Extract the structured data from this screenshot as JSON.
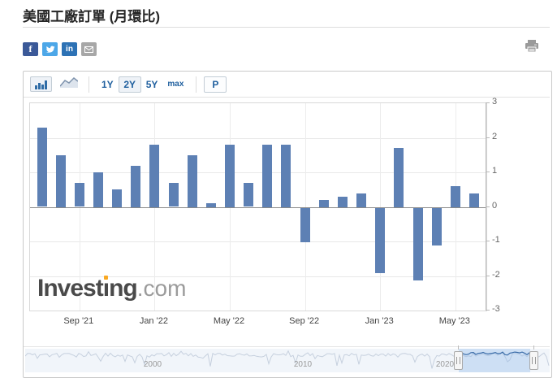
{
  "page": {
    "title": "美國工廠訂單 (月環比)"
  },
  "social": {
    "facebook_label": "f",
    "linkedin_label": "in"
  },
  "toolbar": {
    "range_1y": "1Y",
    "range_2y": "2Y",
    "range_5y": "5Y",
    "range_max": "max",
    "p_label": "P",
    "selected_range": "2Y",
    "accent_color": "#20609f"
  },
  "watermark": {
    "part1": "Invest",
    "part2": "ng",
    "dotcom": ".com"
  },
  "chart_data": {
    "type": "bar",
    "title": "美國工廠訂單 (月環比)",
    "categories": [
      "Jul '21",
      "Aug '21",
      "Sep '21",
      "Oct '21",
      "Nov '21",
      "Dec '21",
      "Jan '22",
      "Feb '22",
      "Mar '22",
      "Apr '22",
      "May '22",
      "Jun '22",
      "Jul '22",
      "Aug '22",
      "Sep '22",
      "Oct '22",
      "Nov '22",
      "Dec '22",
      "Jan '23",
      "Feb '23",
      "Mar '23",
      "Apr '23",
      "May '23",
      "Jun '23"
    ],
    "values": [
      2.3,
      1.5,
      0.7,
      1.0,
      0.5,
      1.2,
      1.8,
      0.7,
      1.5,
      0.1,
      1.8,
      0.7,
      1.8,
      1.8,
      -1.0,
      0.2,
      0.3,
      0.4,
      -1.9,
      1.7,
      -2.1,
      -1.1,
      0.6,
      0.4
    ],
    "xlabel": "",
    "ylabel": "",
    "ylim": [
      -3,
      3
    ],
    "yticks": [
      3,
      2,
      1,
      0,
      -1,
      -2,
      -3
    ],
    "xtick_labels": [
      "Sep '21",
      "Jan '22",
      "May '22",
      "Sep '22",
      "Jan '23",
      "May '23"
    ],
    "xtick_indices": [
      2,
      6,
      10,
      14,
      18,
      22
    ],
    "grid": true,
    "axis_side": "right",
    "bar_color": "#5d80b4",
    "legend": "none"
  },
  "navigator": {
    "years": [
      "2000",
      "2010",
      "2020"
    ]
  }
}
